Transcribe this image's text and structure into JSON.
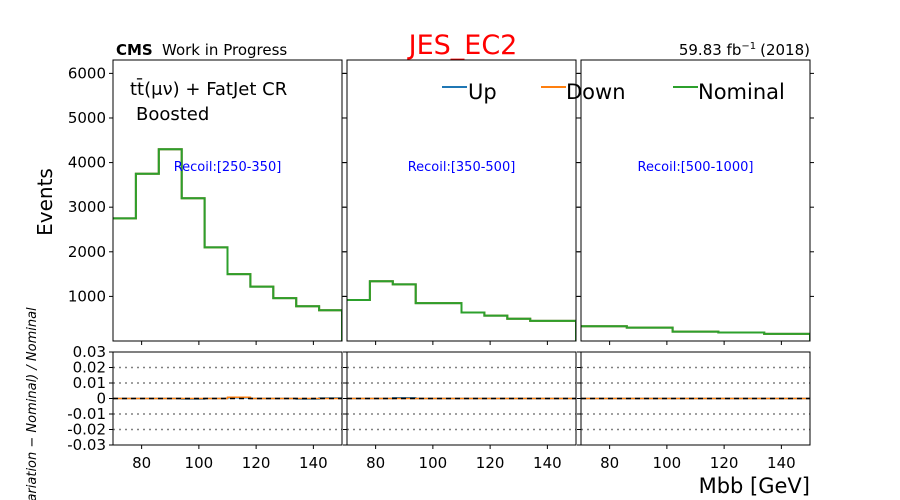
{
  "header": {
    "cms": "CMS",
    "status": "Work in Progress",
    "title": "JES_EC2",
    "lumi": "59.83 fb",
    "lumi_exp": "−1",
    "lumi_year": "(2018)"
  },
  "region": {
    "line1": "tt̄(μν) + FatJet CR",
    "line2": "Boosted"
  },
  "colors": {
    "up": "#1f77b4",
    "down": "#ff7f0e",
    "nominal": "#2ca02c",
    "title": "#ff0000",
    "recoil": "#0000ff"
  },
  "chart_data": {
    "type": "line",
    "title": "JES_EC2",
    "xlabel": "Mbb [GeV]",
    "ylabel_top": "Events",
    "ylabel_ratio": "(Variation − Nominal) / Nominal",
    "legend": [
      "Up",
      "Down",
      "Nominal"
    ],
    "legend_position": "top-right",
    "xlim": [
      70,
      150
    ],
    "ylim_top": [
      0,
      6300
    ],
    "ylim_ratio": [
      -0.03,
      0.03
    ],
    "yticks_top": [
      "1000",
      "2000",
      "3000",
      "4000",
      "5000",
      "6000"
    ],
    "yticks_ratio": [
      "0.03",
      "0.02",
      "0.01",
      "0",
      "-0.01",
      "-0.02",
      "-0.03"
    ],
    "xticks": [
      "80",
      "100",
      "120",
      "140"
    ],
    "ratio_grid": [
      0.02,
      0.01,
      -0.01,
      -0.02
    ],
    "bin_edges": [
      70,
      78,
      86,
      94,
      102,
      110,
      118,
      126,
      134,
      142,
      150
    ],
    "panels": [
      {
        "label": "Recoil:[250-350]",
        "nominal": [
          2750,
          3750,
          4300,
          3200,
          2100,
          1500,
          1220,
          960,
          780,
          690
        ],
        "ratio_up": [
          0.0,
          0.0,
          0.0,
          -0.0003,
          0.0,
          0.0005,
          0.0,
          0.0,
          -0.0003,
          0.0003
        ],
        "ratio_down": [
          0.0,
          0.0,
          0.0,
          0.0,
          0.0,
          0.0008,
          0.0,
          0.0,
          0.0,
          0.0
        ]
      },
      {
        "label": "Recoil:[350-500]",
        "nominal": [
          920,
          1340,
          1270,
          850,
          850,
          640,
          570,
          500,
          450,
          450
        ],
        "ratio_up": [
          0.0,
          0.0,
          0.0005,
          0.0,
          0.0,
          0.0,
          0.0,
          0.0,
          0.0,
          0.0
        ],
        "ratio_down": [
          0.0,
          0.0,
          0.0,
          0.0,
          0.0,
          0.0,
          0.0,
          0.0,
          0.0,
          0.0
        ]
      },
      {
        "label": "Recoil:[500-1000]",
        "nominal": [
          330,
          330,
          300,
          300,
          210,
          210,
          190,
          190,
          160,
          160
        ],
        "ratio_up": [
          0.0,
          0.0,
          0.0,
          0.0,
          0.0,
          0.0,
          0.0,
          0.0,
          0.0,
          0.0
        ],
        "ratio_down": [
          0.0,
          0.0,
          0.0,
          0.0,
          0.0,
          0.0,
          0.0,
          0.0,
          0.0,
          0.0
        ]
      }
    ]
  }
}
